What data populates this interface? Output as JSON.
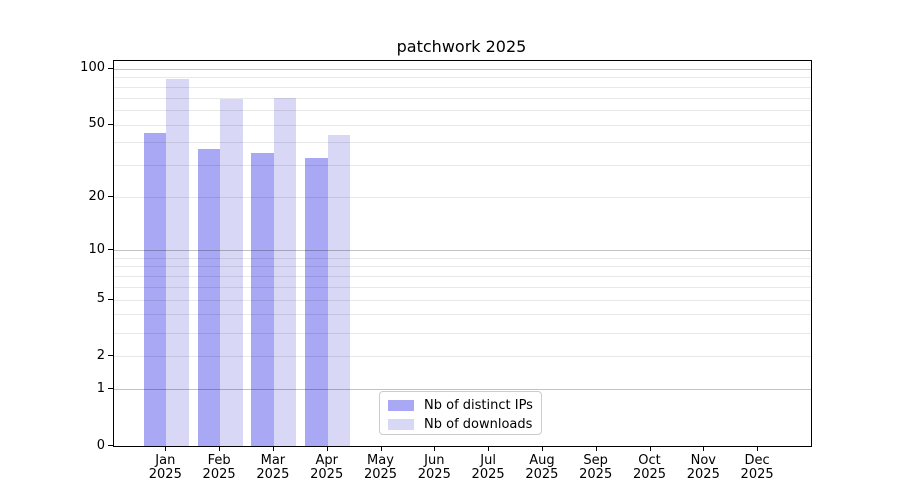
{
  "title": "patchwork 2025",
  "colors": {
    "bar_ips": "#a8a8f4",
    "bar_downloads": "#d8d8f6",
    "axis": "#000000",
    "legend_border": "#cccccc",
    "background": "#ffffff"
  },
  "chart_data": {
    "type": "bar",
    "title": "patchwork 2025",
    "categories": [
      "Jan",
      "Feb",
      "Mar",
      "Apr",
      "May",
      "Jun",
      "Jul",
      "Aug",
      "Sep",
      "Oct",
      "Nov",
      "Dec"
    ],
    "year_label": "2025",
    "series": [
      {
        "name": "Nb of distinct IPs",
        "color": "#a8a8f4",
        "values": [
          45,
          37,
          35,
          33,
          0,
          0,
          0,
          0,
          0,
          0,
          0,
          0
        ]
      },
      {
        "name": "Nb of downloads",
        "color": "#d8d8f6",
        "values": [
          88,
          69,
          70,
          44,
          0,
          0,
          0,
          0,
          0,
          0,
          0,
          0
        ]
      }
    ],
    "yscale": "log1p",
    "ylim": [
      0,
      110
    ],
    "yticks": [
      0,
      1,
      2,
      5,
      10,
      20,
      50,
      100
    ],
    "gridlines": {
      "major": [
        1,
        10,
        100
      ],
      "minor": [
        2,
        3,
        4,
        5,
        6,
        7,
        8,
        9,
        20,
        30,
        40,
        50,
        60,
        70,
        80,
        90
      ]
    },
    "grid": "both",
    "legend_position": "lower center"
  }
}
